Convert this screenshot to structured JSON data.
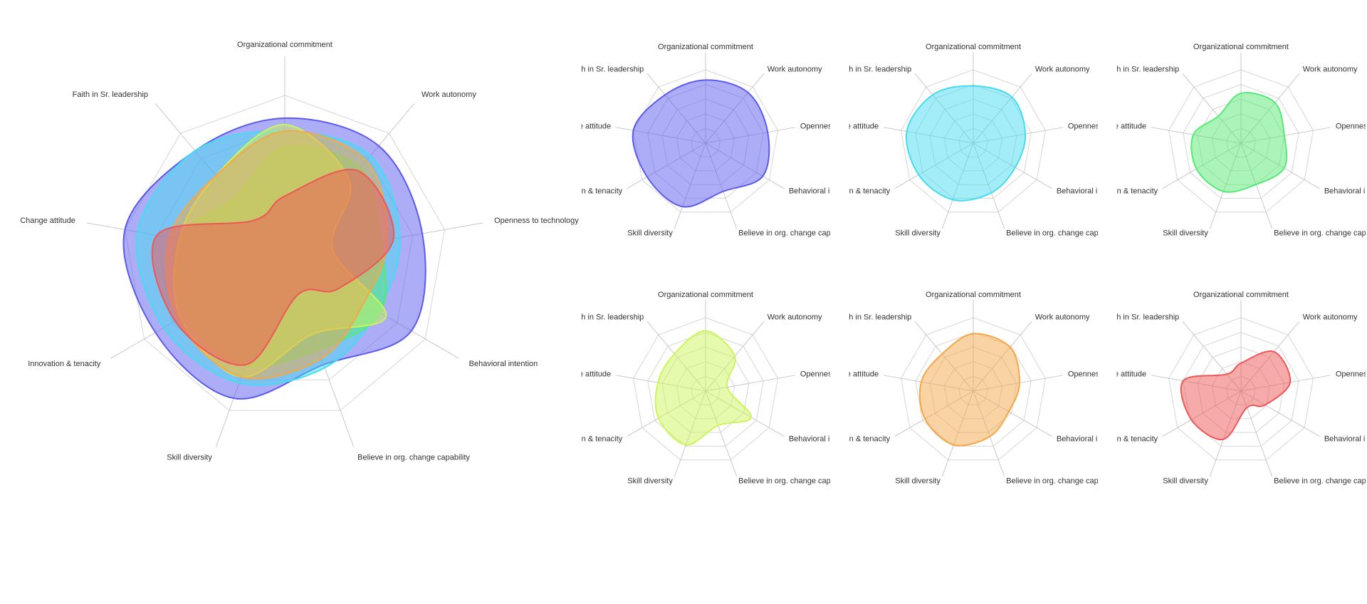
{
  "axes": [
    "Organizational commitment",
    "Work autonomy",
    "Openness to technology",
    "Behavioral intention",
    "Believe in org. change capability",
    "Skill diversity",
    "Innovation & tenacity",
    "Change attitude",
    "Faith in Sr. leadership"
  ],
  "chart_data": {
    "type": "radar",
    "scale_max": 5,
    "grid_levels": 5,
    "interpolation": "smooth",
    "series": [
      {
        "color": "#5b5bf0",
        "values": [
          4.3,
          4.5,
          4.3,
          4.5,
          3.5,
          4.6,
          4.6,
          5.0,
          4.3
        ]
      },
      {
        "color": "#45dcf0",
        "values": [
          3.9,
          4.1,
          3.6,
          3.3,
          3.6,
          4.1,
          4.3,
          4.6,
          4.3
        ]
      },
      {
        "color": "#55ea75",
        "values": [
          3.4,
          3.6,
          3.0,
          3.4,
          3.0,
          3.5,
          3.5,
          3.3,
          2.4
        ]
      },
      {
        "color": "#ccf55a",
        "values": [
          4.1,
          3.1,
          1.5,
          3.6,
          2.5,
          3.9,
          3.7,
          3.3,
          3.3
        ]
      },
      {
        "color": "#f4a848",
        "values": [
          3.9,
          3.9,
          3.2,
          2.8,
          3.3,
          3.9,
          3.8,
          3.6,
          3.3
        ]
      },
      {
        "color": "#ef5656",
        "values": [
          1.9,
          3.5,
          3.4,
          1.9,
          1.2,
          3.5,
          3.9,
          4.0,
          1.5
        ]
      }
    ]
  }
}
